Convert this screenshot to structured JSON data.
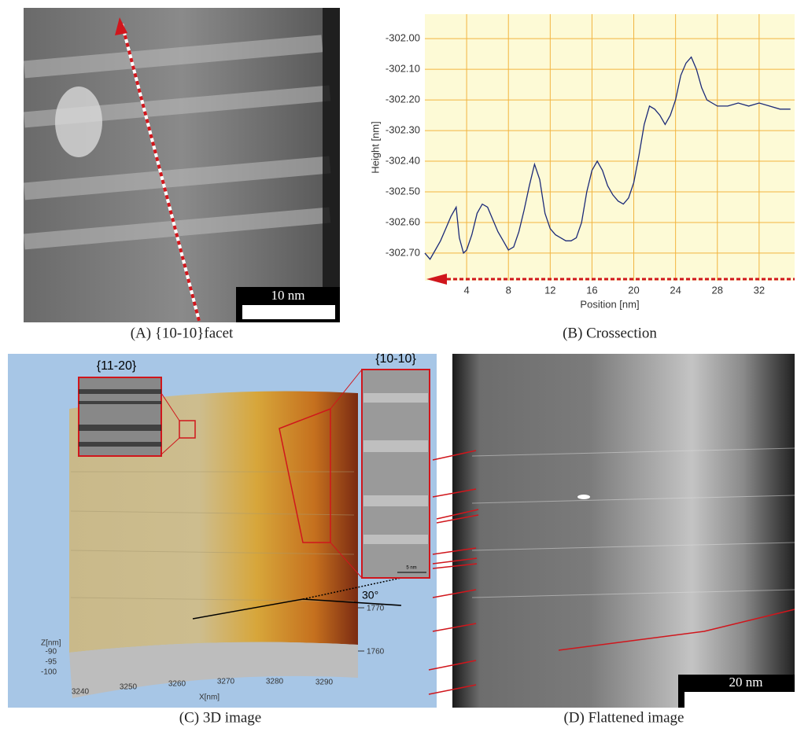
{
  "panel_a": {
    "scale_bar": "10 nm",
    "caption": "(A) {10-10}facet"
  },
  "chart_data": {
    "type": "line",
    "caption": "(B) Crossection",
    "x_label": "Position [nm]",
    "y_label": "Height [nm]",
    "color": "#1c2a78",
    "grid": true,
    "xlim": [
      0,
      35.4
    ],
    "ylim": [
      -302.79,
      -301.92
    ],
    "xticks": [
      4,
      8,
      12,
      16,
      20,
      24,
      28,
      32
    ],
    "yticks": [
      {
        "value": -302.0,
        "label": "-302.00"
      },
      {
        "value": -302.1,
        "label": "-302.10"
      },
      {
        "value": -302.2,
        "label": "-302.20"
      },
      {
        "value": -302.3,
        "label": "-302.30"
      },
      {
        "value": -302.4,
        "label": "-302.40"
      },
      {
        "value": -302.5,
        "label": "-302.50"
      },
      {
        "value": -302.6,
        "label": "-302.60"
      },
      {
        "value": -302.7,
        "label": "-302.70"
      }
    ],
    "x": [
      0,
      0.5,
      1,
      1.5,
      2,
      2.5,
      3,
      3.3,
      3.7,
      4,
      4.5,
      5,
      5.5,
      6,
      6.5,
      7,
      7.5,
      8,
      8.5,
      9,
      9.5,
      10,
      10.5,
      11,
      11.5,
      12,
      12.5,
      13,
      13.5,
      14,
      14.5,
      15,
      15.5,
      16,
      16.5,
      17,
      17.5,
      18,
      18.5,
      19,
      19.5,
      20,
      20.5,
      21,
      21.5,
      22,
      22.5,
      23,
      23.5,
      24,
      24.5,
      25,
      25.5,
      26,
      26.5,
      27,
      27.5,
      28,
      29,
      30,
      31,
      32,
      33,
      34,
      35
    ],
    "values": [
      -302.7,
      -302.72,
      -302.69,
      -302.66,
      -302.62,
      -302.58,
      -302.55,
      -302.65,
      -302.7,
      -302.69,
      -302.64,
      -302.57,
      -302.54,
      -302.55,
      -302.59,
      -302.63,
      -302.66,
      -302.69,
      -302.68,
      -302.63,
      -302.56,
      -302.48,
      -302.41,
      -302.46,
      -302.57,
      -302.62,
      -302.64,
      -302.65,
      -302.66,
      -302.66,
      -302.65,
      -302.6,
      -302.5,
      -302.43,
      -302.4,
      -302.43,
      -302.48,
      -302.51,
      -302.53,
      -302.54,
      -302.52,
      -302.47,
      -302.38,
      -302.28,
      -302.22,
      -302.23,
      -302.25,
      -302.28,
      -302.25,
      -302.2,
      -302.12,
      -302.08,
      -302.06,
      -302.1,
      -302.16,
      -302.2,
      -302.21,
      -302.22,
      -302.22,
      -302.21,
      -302.22,
      -302.21,
      -302.22,
      -302.23,
      -302.23
    ]
  },
  "panel_c": {
    "inset_left_label": "{11-20}",
    "inset_right_label": "{10-10}",
    "inset_scale": "5 nm",
    "angle": "30°",
    "y_ticks": [
      "1770",
      "1760"
    ],
    "z_label": "Z[nm]",
    "z_ticks": [
      "-90",
      "-95",
      "-100"
    ],
    "x_ticks": [
      "3240",
      "3250",
      "3260",
      "3270",
      "3280",
      "3290"
    ],
    "x_label": "X[nm]",
    "caption": "(C) 3D image"
  },
  "panel_d": {
    "scale_bar": "20 nm",
    "caption": "(D) Flattened image"
  }
}
